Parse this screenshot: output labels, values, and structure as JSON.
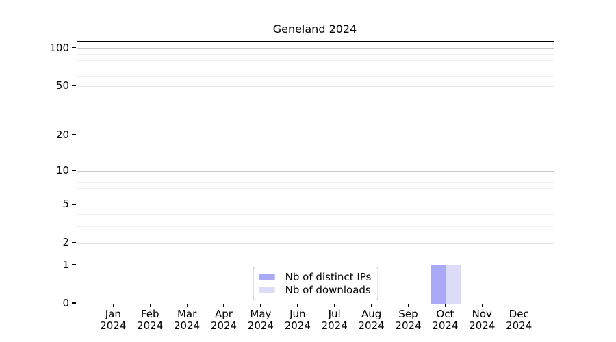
{
  "chart_data": {
    "type": "bar",
    "title": "Geneland 2024",
    "categories": [
      "Jan 2024",
      "Feb 2024",
      "Mar 2024",
      "Apr 2024",
      "May 2024",
      "Jun 2024",
      "Jul 2024",
      "Aug 2024",
      "Sep 2024",
      "Oct 2024",
      "Nov 2024",
      "Dec 2024"
    ],
    "series": [
      {
        "name": "Nb of distinct IPs",
        "color": "#a9a9f8",
        "values": [
          0,
          0,
          0,
          0,
          0,
          0,
          0,
          0,
          0,
          1,
          0,
          0
        ]
      },
      {
        "name": "Nb of downloads",
        "color": "#dddcf8",
        "values": [
          0,
          0,
          0,
          0,
          0,
          0,
          0,
          0,
          0,
          1,
          0,
          0
        ]
      }
    ],
    "yscale": "log1p",
    "ylim": [
      0,
      113
    ],
    "y_major_ticks": [
      0,
      1,
      2,
      5,
      10,
      20,
      50,
      100
    ],
    "y_strong_gridlines": [
      1,
      10,
      100
    ],
    "y_minor_gridlines": [
      3,
      4,
      6,
      7,
      8,
      9,
      15,
      30,
      40,
      60,
      70,
      80,
      90
    ],
    "grid": "horizontal",
    "legend_position": "lower center",
    "background": "#ffffff",
    "axis_color": "#000000"
  }
}
